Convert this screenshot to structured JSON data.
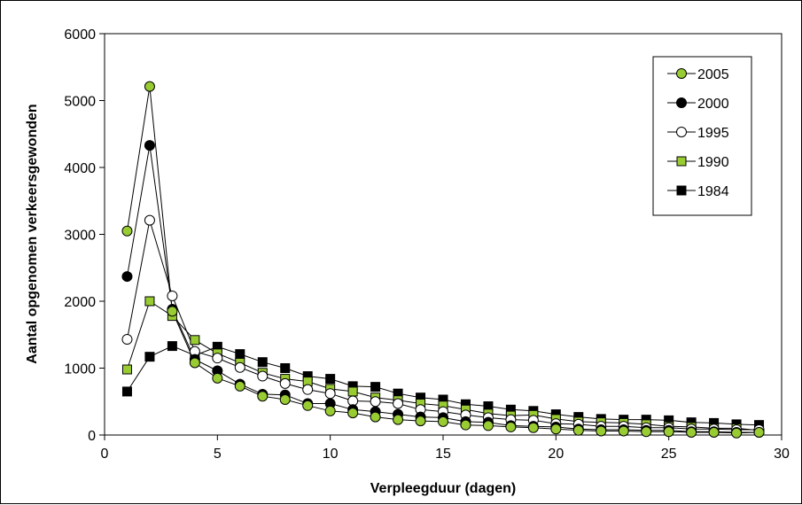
{
  "chart_data": {
    "type": "line",
    "xlabel": "Verpleegduur (dagen)",
    "ylabel": "Aantal opgenomen verkeersgewonden",
    "xlim": [
      0,
      30
    ],
    "ylim": [
      0,
      6000
    ],
    "xticks": [
      0,
      5,
      10,
      15,
      20,
      25,
      30
    ],
    "yticks": [
      0,
      1000,
      2000,
      3000,
      4000,
      5000,
      6000
    ],
    "grid": false,
    "legend_position": "top-right",
    "x": [
      1,
      2,
      3,
      4,
      5,
      6,
      7,
      8,
      9,
      10,
      11,
      12,
      13,
      14,
      15,
      16,
      17,
      18,
      19,
      20,
      21,
      22,
      23,
      24,
      25,
      26,
      27,
      28,
      29
    ],
    "series": [
      {
        "name": "2005",
        "marker": "circle",
        "fill": "#99cc33",
        "values": [
          3050,
          5210,
          1850,
          1080,
          850,
          730,
          580,
          530,
          440,
          360,
          330,
          270,
          230,
          210,
          200,
          150,
          140,
          120,
          110,
          90,
          70,
          60,
          60,
          50,
          50,
          40,
          40,
          30,
          40
        ]
      },
      {
        "name": "2000",
        "marker": "circle",
        "fill": "#000000",
        "values": [
          2370,
          4330,
          1880,
          1130,
          960,
          760,
          610,
          600,
          470,
          470,
          380,
          350,
          310,
          270,
          260,
          200,
          190,
          140,
          130,
          120,
          90,
          80,
          80,
          70,
          70,
          50,
          50,
          40,
          40
        ]
      },
      {
        "name": "1995",
        "marker": "circle",
        "fill": "#ffffff",
        "values": [
          1430,
          3210,
          2080,
          1250,
          1150,
          1010,
          880,
          770,
          680,
          620,
          510,
          500,
          470,
          380,
          350,
          300,
          260,
          230,
          220,
          170,
          160,
          130,
          130,
          110,
          110,
          90,
          90,
          80,
          80
        ]
      },
      {
        "name": "1990",
        "marker": "square",
        "fill": "#99cc33",
        "values": [
          980,
          2000,
          1780,
          1420,
          1220,
          1080,
          930,
          840,
          800,
          690,
          650,
          560,
          520,
          470,
          440,
          380,
          320,
          290,
          300,
          240,
          200,
          190,
          180,
          160,
          130,
          120,
          100,
          100,
          70
        ]
      },
      {
        "name": "1984",
        "marker": "square",
        "fill": "#000000",
        "values": [
          650,
          1170,
          1330,
          1190,
          1320,
          1210,
          1090,
          1000,
          880,
          840,
          730,
          720,
          620,
          560,
          530,
          460,
          430,
          380,
          360,
          310,
          270,
          240,
          230,
          230,
          220,
          190,
          180,
          160,
          150
        ]
      }
    ]
  }
}
